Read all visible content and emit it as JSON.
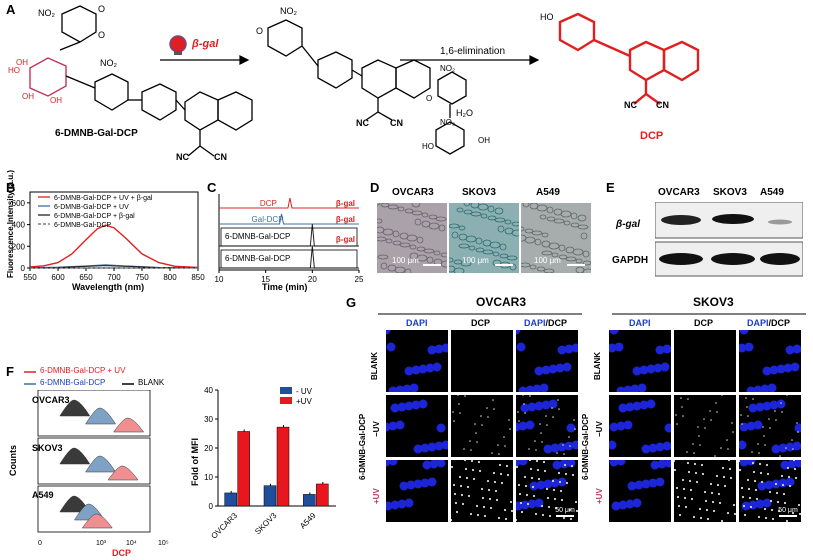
{
  "panels": {
    "A": {
      "label": "A",
      "compound1": "6-DMNB-Gal-DCP",
      "enzyme": "β-gal",
      "step": "1,6-elimination",
      "water": "H₂O",
      "product": "DCP",
      "atoms": {
        "no2": "NO₂",
        "oh": "OH",
        "ho": "HO",
        "o": "O",
        "nc": "NC",
        "cn": "CN",
        "ome": "O"
      }
    },
    "B": {
      "label": "B",
      "legend": [
        "6-DMNB-Gal-DCP + UV + β-gal",
        "6-DMNB-Gal-DCP + UV",
        "6-DMNB-Gal-DCP + β-gal",
        "6-DMNB-Gal-DCP"
      ],
      "xlabel": "Wavelength (nm)",
      "ylabel": "Fluorescence Intensity (a.u.)",
      "xticks": [
        "550",
        "600",
        "650",
        "700",
        "750",
        "800",
        "850"
      ],
      "yticks": [
        "0",
        "200",
        "400",
        "600"
      ]
    },
    "C": {
      "label": "C",
      "traces": [
        "DCP",
        "Gal-DCP",
        "6-DMNB-Gal-DCP",
        "6-DMNB-Gal-DCP"
      ],
      "enzyme": "β-gal",
      "xlabel": "Time (min)",
      "xticks": [
        "10",
        "15",
        "20",
        "25"
      ]
    },
    "D": {
      "label": "D",
      "cells": [
        "OVCAR3",
        "SKOV3",
        "A549"
      ],
      "scale": "100 μm"
    },
    "E": {
      "label": "E",
      "cells": [
        "OVCAR3",
        "SKOV3",
        "A549"
      ],
      "rows": [
        "β-gal",
        "GAPDH"
      ]
    },
    "F": {
      "label": "F",
      "legend": [
        "6-DMNB-Gal-DCP + UV",
        "6-DMNB-Gal-DCP",
        "BLANK"
      ],
      "rows": [
        "OVCAR3",
        "SKOV3",
        "A549"
      ],
      "ylabel": "Counts",
      "xlabel": "DCP",
      "xticks": [
        "0",
        "10³",
        "10⁴",
        "10⁵"
      ],
      "bar_ylabel": "Fold of MFI",
      "bar_legend": [
        "- UV",
        "+UV"
      ],
      "bar_yticks": [
        "0",
        "10",
        "20",
        "30",
        "40"
      ]
    },
    "G": {
      "label": "G",
      "groups": [
        "OVCAR3",
        "SKOV3"
      ],
      "cols": [
        "DAPI",
        "DCP",
        "DAPI/DCP"
      ],
      "col_dapi": "DAPI",
      "col_slash": "/DCP",
      "rows": [
        "BLANK",
        "−UV",
        "6-DMNB-Gal-DCP",
        "+UV"
      ],
      "scale": "50 μm"
    }
  },
  "chart_data": [
    {
      "type": "line",
      "title": "",
      "xlabel": "Wavelength (nm)",
      "ylabel": "Fluorescence Intensity (a.u.)",
      "xlim": [
        550,
        850
      ],
      "ylim": [
        0,
        700
      ],
      "series": [
        {
          "name": "6-DMNB-Gal-DCP + UV + β-gal",
          "color": "#e02020",
          "x": [
            550,
            575,
            600,
            625,
            650,
            670,
            685,
            700,
            720,
            750,
            780,
            810,
            850
          ],
          "y": [
            10,
            20,
            50,
            130,
            260,
            360,
            395,
            370,
            280,
            130,
            50,
            15,
            5
          ]
        },
        {
          "name": "6-DMNB-Gal-DCP + UV",
          "color": "#3c6fa8",
          "x": [
            550,
            600,
            650,
            685,
            720,
            780,
            850
          ],
          "y": [
            3,
            8,
            20,
            30,
            20,
            6,
            2
          ]
        },
        {
          "name": "6-DMNB-Gal-DCP + β-gal",
          "color": "#222222",
          "x": [
            550,
            600,
            650,
            685,
            720,
            780,
            850
          ],
          "y": [
            2,
            5,
            15,
            22,
            15,
            4,
            1
          ]
        },
        {
          "name": "6-DMNB-Gal-DCP",
          "color": "#666666",
          "x": [
            550,
            850
          ],
          "y": [
            1,
            1
          ]
        }
      ]
    },
    {
      "type": "line",
      "title": "",
      "xlabel": "Time (min)",
      "xlim": [
        10,
        25
      ],
      "series": [
        {
          "name": "DCP",
          "color": "#e02020",
          "peak": 17.6
        },
        {
          "name": "Gal-DCP",
          "color": "#3c6fa8",
          "peak": 16.7
        },
        {
          "name": "6-DMNB-Gal-DCP",
          "color": "#222222",
          "peak": 20.0
        },
        {
          "name": "6-DMNB-Gal-DCP",
          "color": "#222222",
          "peak": 20.0
        }
      ]
    },
    {
      "type": "bar",
      "title": "",
      "xlabel": "",
      "ylabel": "Fold of MFI",
      "categories": [
        "OVCAR3",
        "SKOV3",
        "A549"
      ],
      "ylim": [
        0,
        40
      ],
      "series": [
        {
          "name": "- UV",
          "color": "#1f4e9c",
          "values": [
            4.5,
            7.0,
            4.0
          ]
        },
        {
          "name": "+UV",
          "color": "#e8171d",
          "values": [
            25.7,
            27.2,
            7.6
          ]
        }
      ]
    }
  ]
}
